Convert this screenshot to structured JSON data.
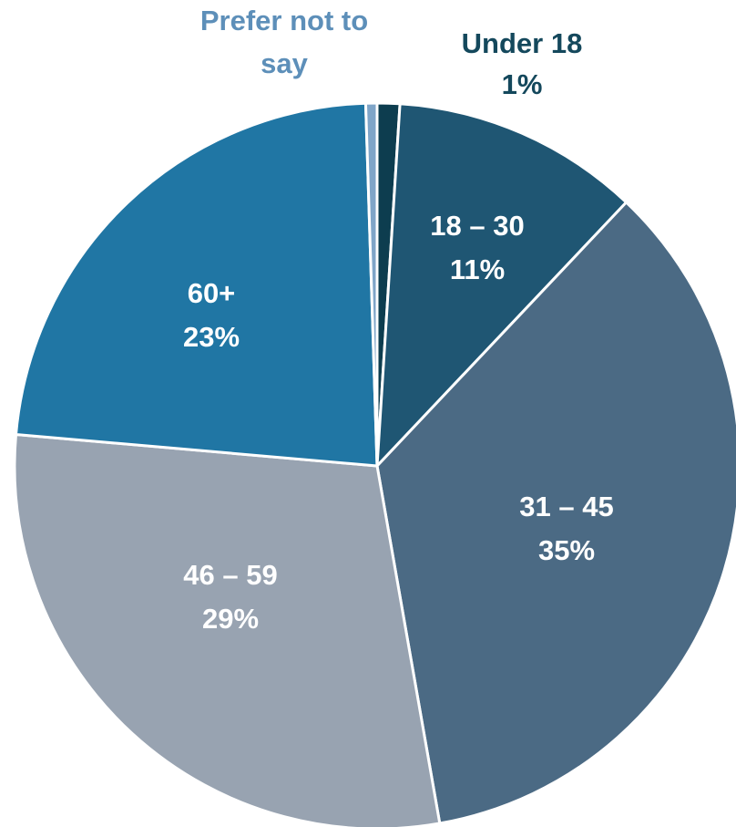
{
  "chart_data": {
    "type": "pie",
    "slices": [
      {
        "label": "Under 18",
        "percent_label": "1%",
        "value": 1,
        "color": "#0d3d4f",
        "label_color": "#14485c"
      },
      {
        "label": "18 – 30",
        "percent_label": "11%",
        "value": 11,
        "color": "#1f5673",
        "label_color": "#ffffff"
      },
      {
        "label": "31 – 45",
        "percent_label": "35%",
        "value": 35,
        "color": "#4b6a84",
        "label_color": "#ffffff"
      },
      {
        "label": "46 – 59",
        "percent_label": "29%",
        "value": 29,
        "color": "#98a3b1",
        "label_color": "#ffffff"
      },
      {
        "label": "60+",
        "percent_label": "23%",
        "value": 23,
        "color": "#2076a4",
        "label_color": "#ffffff"
      },
      {
        "label": "Prefer not to say",
        "percent_label": "",
        "value": 0.5,
        "color": "#7fa5c8",
        "label_color": "#5d8fb9"
      }
    ],
    "start": "top",
    "direction": "clockwise",
    "slice_border_color": "#ffffff"
  }
}
